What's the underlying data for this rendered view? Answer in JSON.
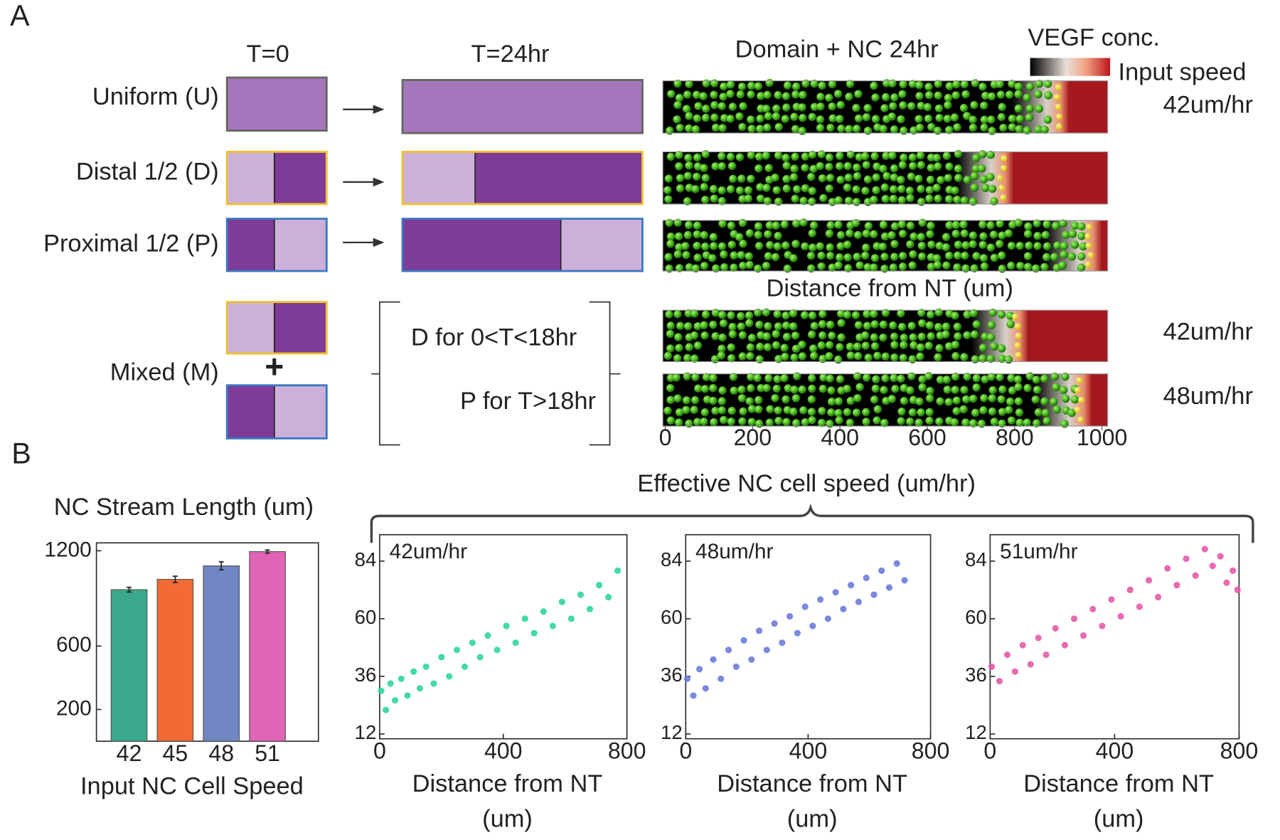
{
  "panel_labels": [
    "A",
    "B"
  ],
  "panel_a": {
    "column_headers": [
      "T=0",
      "T=24hr",
      "Domain + NC 24hr"
    ],
    "colorbar_label": "VEGF conc.",
    "speed_header": "Input speed",
    "rows": [
      {
        "label": "Uniform (U)",
        "speed": "42um/hr"
      },
      {
        "label": "Distal 1/2 (D)"
      },
      {
        "label": "Proximal 1/2 (P)"
      }
    ],
    "mixed": {
      "label": "Mixed (M)",
      "plus": "+",
      "steps": [
        "D for 0<T<18hr",
        "P for T>18hr"
      ],
      "speeds": [
        "42um/hr",
        "48um/hr"
      ]
    },
    "domain_axis": {
      "label": "Distance from NT (um)",
      "xlim": [
        0,
        1000
      ],
      "xticks": [
        0,
        200,
        400,
        600,
        800,
        1000
      ]
    }
  },
  "panel_b_title": "Effective NC cell speed (um/hr)",
  "chart_data": [
    {
      "type": "bar",
      "title": "NC Stream Length (um)",
      "xlabel": "Input NC Cell Speed",
      "categories": [
        "42",
        "45",
        "48",
        "51"
      ],
      "values": [
        955,
        1020,
        1105,
        1195
      ],
      "errors": [
        15,
        20,
        25,
        10
      ],
      "colors": [
        "#3aa88a",
        "#f26a35",
        "#6f86c2",
        "#e064b4"
      ],
      "ylim": [
        0,
        1250
      ],
      "yticks": [
        200,
        600,
        1200
      ]
    },
    {
      "type": "scatter",
      "title": "42um/hr",
      "color": "#2fd69c",
      "xlabel": [
        "Distance from NT",
        "(um)"
      ],
      "x": [
        5,
        20,
        35,
        50,
        70,
        90,
        110,
        130,
        150,
        175,
        200,
        225,
        250,
        275,
        300,
        325,
        350,
        380,
        410,
        440,
        470,
        500,
        530,
        560,
        590,
        620,
        650,
        680,
        710,
        740,
        770
      ],
      "values": [
        30,
        22,
        33,
        26,
        35,
        28,
        38,
        31,
        40,
        33,
        44,
        36,
        47,
        40,
        50,
        44,
        53,
        47,
        57,
        50,
        60,
        54,
        63,
        57,
        67,
        60,
        70,
        64,
        74,
        69,
        80
      ],
      "xlim": [
        0,
        800
      ],
      "xticks": [
        0,
        400,
        800
      ],
      "ylim": [
        10,
        95
      ],
      "yticks": [
        12,
        36,
        60,
        84
      ]
    },
    {
      "type": "scatter",
      "title": "48um/hr",
      "color": "#6b7cd8",
      "xlabel": [
        "Distance from NT",
        "(um)"
      ],
      "x": [
        5,
        25,
        45,
        65,
        90,
        115,
        140,
        165,
        190,
        215,
        240,
        265,
        290,
        315,
        340,
        365,
        390,
        415,
        440,
        465,
        490,
        515,
        540,
        565,
        590,
        615,
        640,
        665,
        690,
        715
      ],
      "values": [
        35,
        28,
        39,
        31,
        43,
        35,
        47,
        40,
        51,
        43,
        55,
        47,
        58,
        50,
        61,
        54,
        65,
        57,
        68,
        60,
        71,
        64,
        74,
        67,
        77,
        70,
        80,
        73,
        83,
        76
      ],
      "xlim": [
        0,
        800
      ],
      "xticks": [
        0,
        400,
        800
      ],
      "ylim": [
        10,
        95
      ],
      "yticks": [
        12,
        36,
        60,
        84
      ]
    },
    {
      "type": "scatter",
      "title": "51um/hr",
      "color": "#e65aa8",
      "xlabel": [
        "Distance from NT",
        "(um)"
      ],
      "x": [
        5,
        30,
        55,
        80,
        105,
        130,
        155,
        180,
        210,
        240,
        270,
        300,
        330,
        360,
        390,
        420,
        450,
        480,
        510,
        540,
        570,
        600,
        630,
        660,
        690,
        715,
        740,
        760,
        780,
        795
      ],
      "values": [
        40,
        34,
        45,
        38,
        49,
        41,
        52,
        45,
        56,
        49,
        60,
        53,
        64,
        57,
        68,
        61,
        72,
        65,
        76,
        69,
        81,
        74,
        85,
        78,
        89,
        82,
        86,
        75,
        80,
        72
      ],
      "xlim": [
        0,
        800
      ],
      "xticks": [
        0,
        400,
        800
      ],
      "ylim": [
        10,
        95
      ],
      "yticks": [
        12,
        36,
        60,
        84
      ]
    }
  ]
}
